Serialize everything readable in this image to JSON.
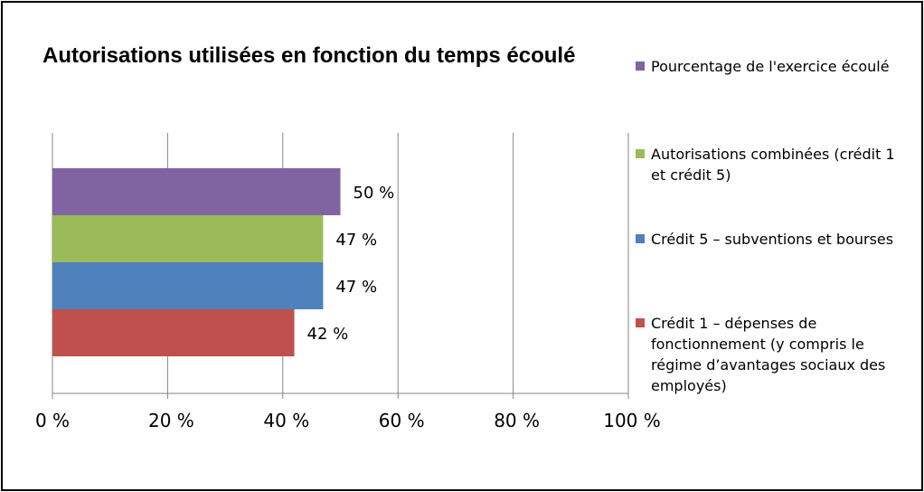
{
  "chart_data": {
    "type": "bar",
    "orientation": "horizontal",
    "title": "Autorisations utilisées en fonction du temps écoulé",
    "categories": [
      "Pourcentage de l'exercice écoulé",
      "Autorisations combinées (crédit 1 et crédit 5)",
      "Crédit 5 – subventions et bourses",
      "Crédit 1 – dépenses de fonctionnement (y compris le régime d’avantages sociaux des employés)"
    ],
    "values": [
      50,
      47,
      47,
      42
    ],
    "data_labels": [
      "50 %",
      "47 %",
      "47 %",
      "42 %"
    ],
    "colors": [
      "#8064A2",
      "#9BBB59",
      "#4F81BD",
      "#C0504D"
    ],
    "xlim": [
      0,
      100
    ],
    "x_ticks": [
      0,
      20,
      40,
      60,
      80,
      100
    ],
    "x_tick_labels": [
      "0  %",
      "20  %",
      "40  %",
      "60  %",
      "80  %",
      "100  %"
    ],
    "xlabel": "",
    "ylabel": "",
    "grid": "vertical",
    "legend_position": "right"
  }
}
